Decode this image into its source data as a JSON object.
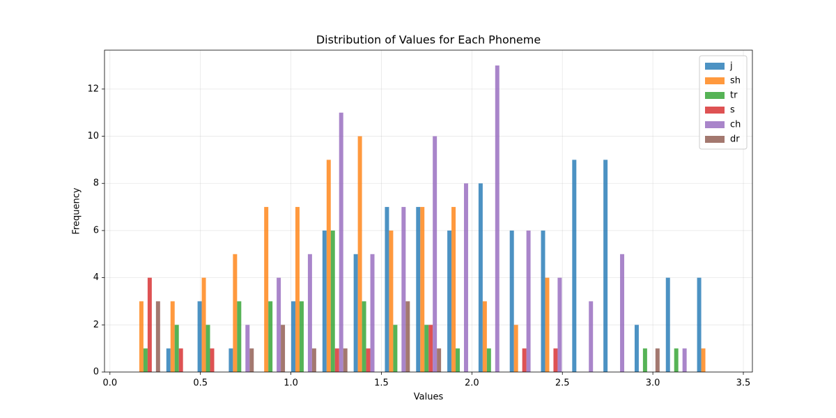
{
  "chart_data": {
    "type": "histogram",
    "title": "Distribution of Values for Each Phoneme",
    "xlabel": "Values",
    "ylabel": "Frequency",
    "bins": [
      0.122,
      0.2945,
      0.467,
      0.6395,
      0.812,
      0.9845,
      1.157,
      1.3295,
      1.502,
      1.6745,
      1.847,
      2.0195,
      2.192,
      2.3645,
      2.537,
      2.7095,
      2.882,
      3.0545,
      3.227,
      3.3995
    ],
    "series": [
      {
        "name": "j",
        "color": "#1f77b4",
        "values": [
          0,
          1,
          3,
          1,
          0,
          3,
          6,
          5,
          7,
          7,
          6,
          8,
          6,
          6,
          9,
          9,
          2,
          4,
          4
        ]
      },
      {
        "name": "sh",
        "color": "#ff7f0e",
        "values": [
          3,
          3,
          4,
          5,
          7,
          7,
          9,
          10,
          6,
          7,
          7,
          3,
          2,
          4,
          0,
          0,
          0,
          0,
          1
        ]
      },
      {
        "name": "tr",
        "color": "#2ca02c",
        "values": [
          1,
          2,
          2,
          3,
          3,
          3,
          6,
          3,
          2,
          2,
          1,
          1,
          0,
          0,
          0,
          0,
          1,
          1,
          0
        ]
      },
      {
        "name": "s",
        "color": "#d62728",
        "values": [
          4,
          1,
          1,
          0,
          0,
          0,
          1,
          1,
          0,
          2,
          0,
          0,
          1,
          1,
          0,
          0,
          0,
          0,
          0
        ]
      },
      {
        "name": "ch",
        "color": "#9467bd",
        "values": [
          0,
          0,
          0,
          2,
          4,
          5,
          11,
          5,
          7,
          10,
          8,
          13,
          6,
          4,
          3,
          5,
          0,
          1,
          0
        ]
      },
      {
        "name": "dr",
        "color": "#8c564b",
        "values": [
          3,
          0,
          0,
          1,
          2,
          1,
          1,
          0,
          3,
          1,
          0,
          0,
          0,
          0,
          0,
          0,
          1,
          0,
          0
        ]
      }
    ],
    "xlim": [
      -0.03,
      3.55
    ],
    "ylim": [
      0,
      13.65
    ],
    "xticks": [
      {
        "value": 0,
        "label": "0.0"
      },
      0.5,
      {
        "value": 1,
        "label": "1.0"
      },
      1.5,
      {
        "value": 2,
        "label": "2.0"
      },
      2.5,
      {
        "value": 3,
        "label": "3.0"
      },
      3.5
    ],
    "yticks": [
      0,
      2,
      4,
      6,
      8,
      10,
      12
    ],
    "grid": true,
    "legend": "upper right",
    "alpha": 0.8
  }
}
